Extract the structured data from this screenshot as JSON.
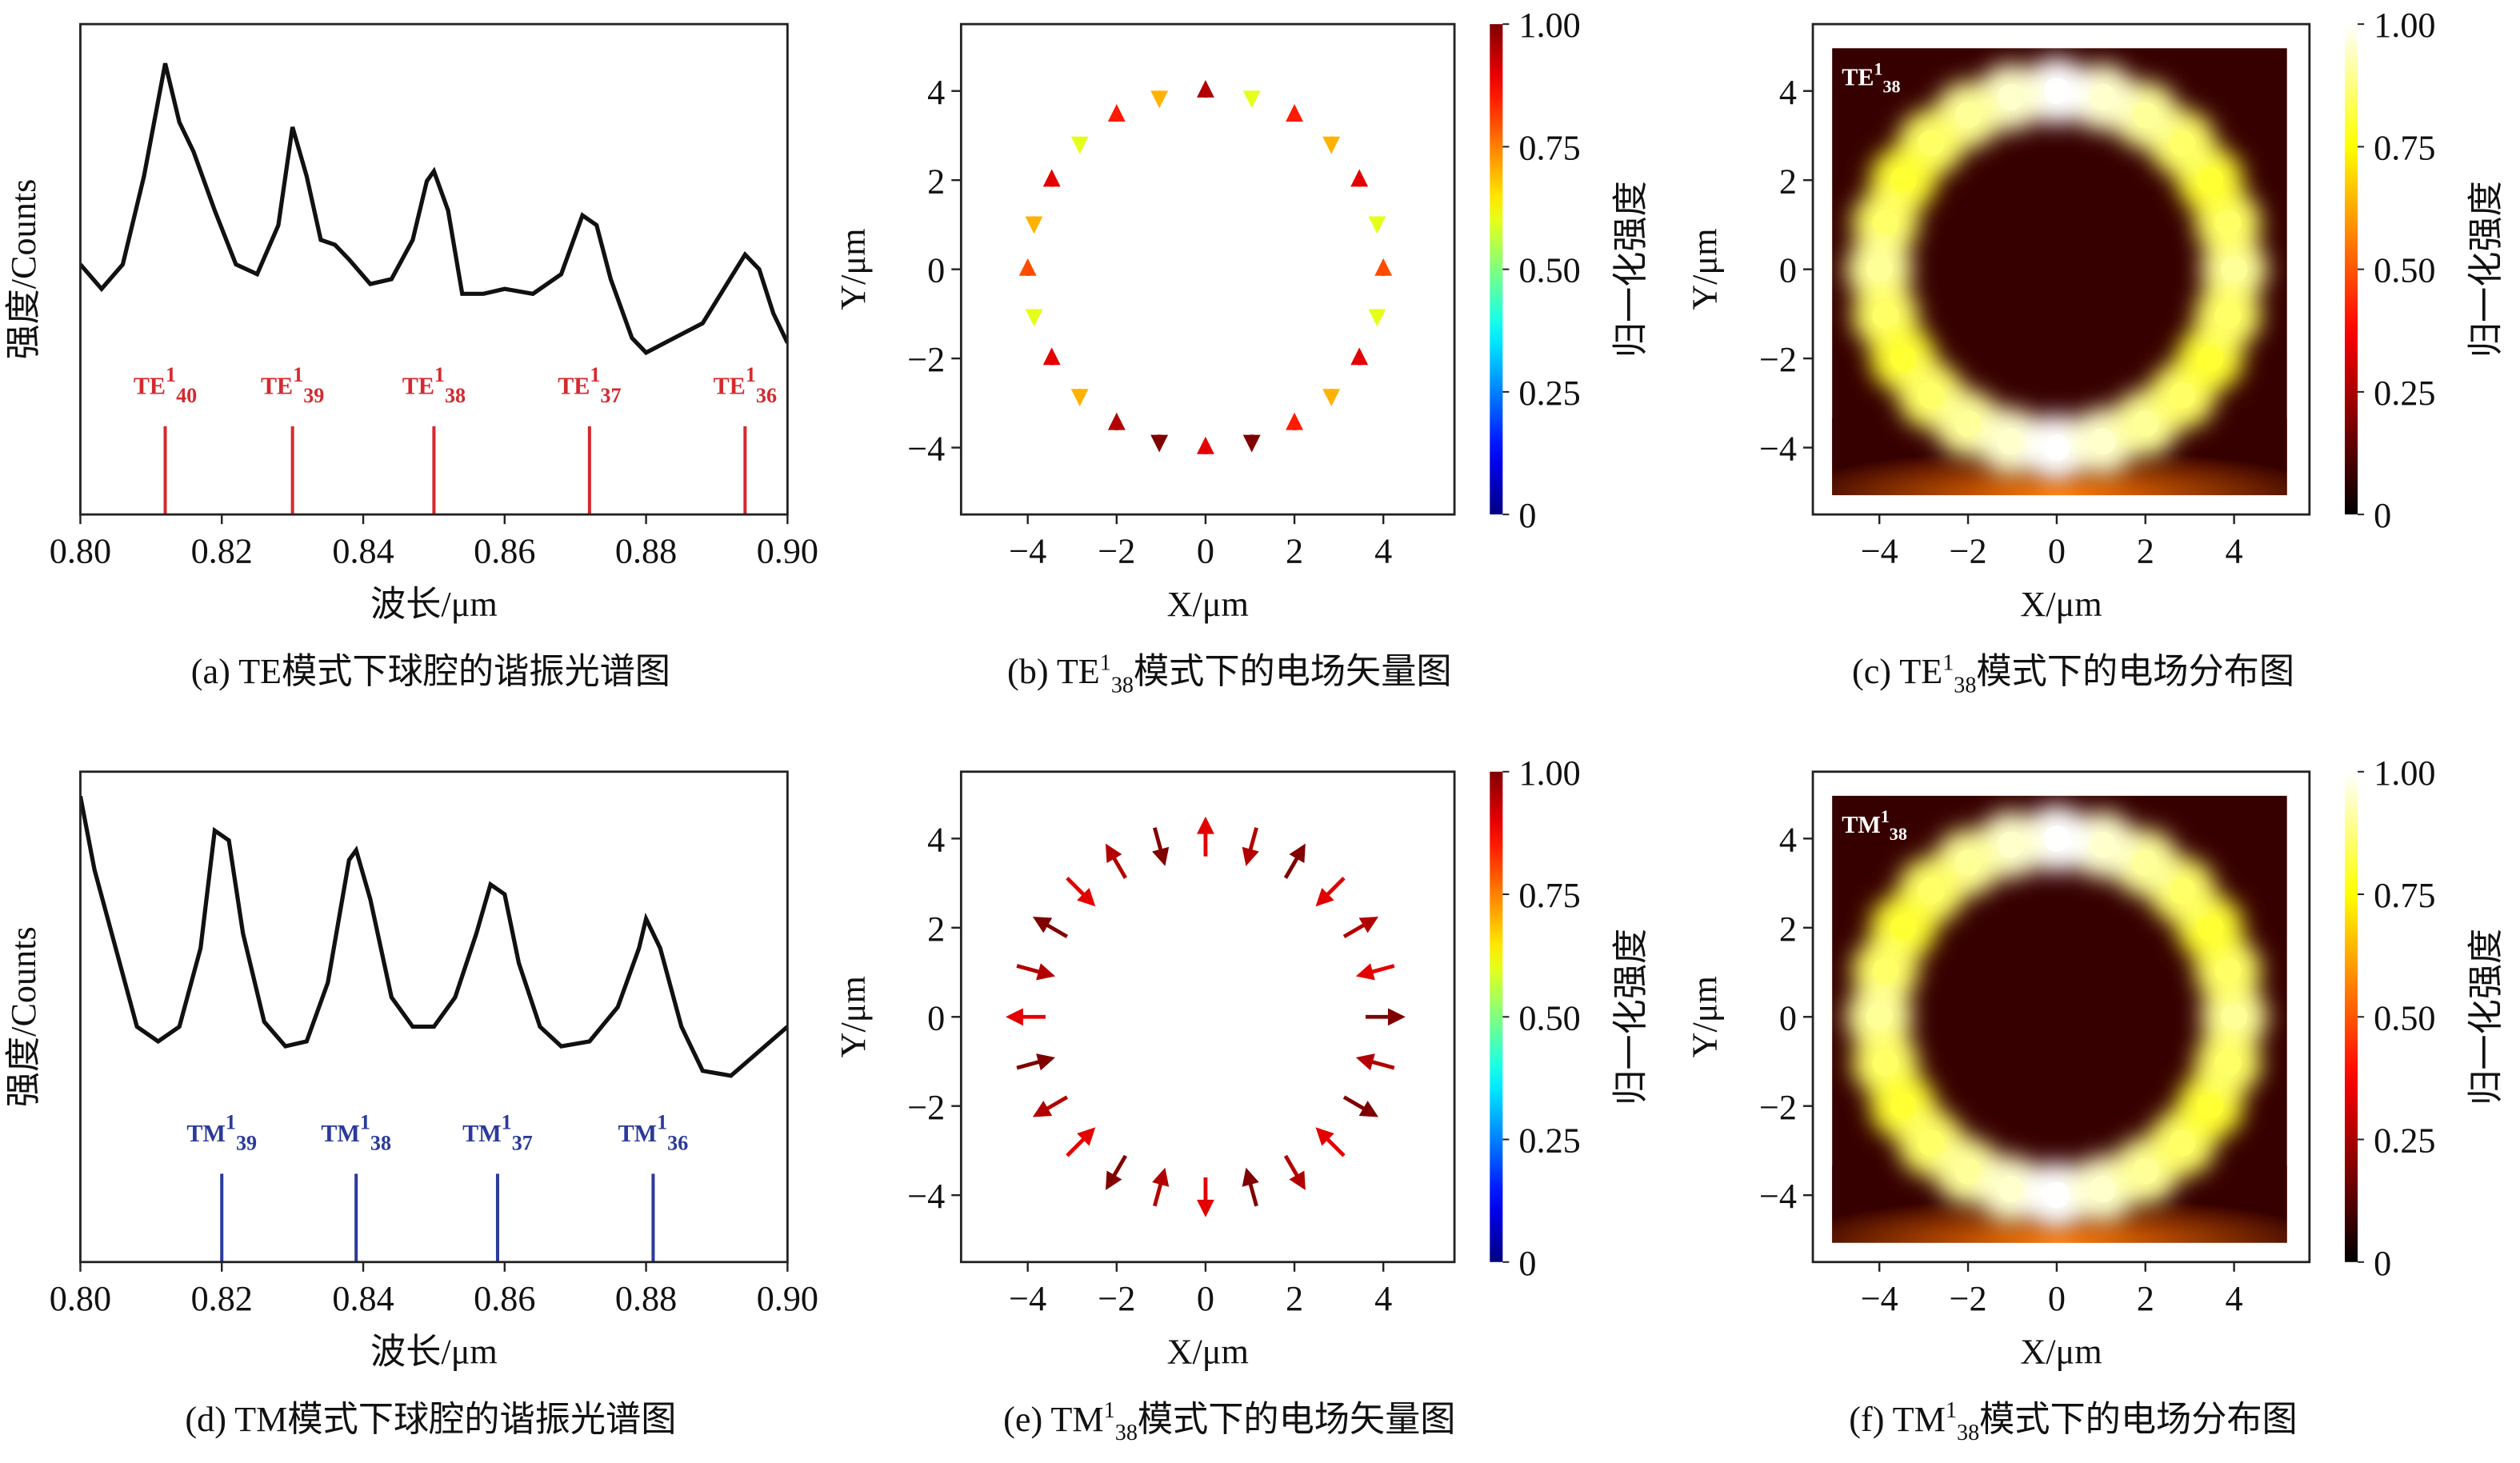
{
  "chart_data": [
    {
      "type": "line",
      "caption": "(a) TE模式下球腔的谐振光谱图",
      "xlabel": "波长/μm",
      "ylabel": "强度/Counts",
      "x": [
        0.8,
        0.803,
        0.806,
        0.809,
        0.812,
        0.814,
        0.816,
        0.819,
        0.822,
        0.825,
        0.828,
        0.83,
        0.832,
        0.834,
        0.836,
        0.838,
        0.841,
        0.844,
        0.847,
        0.849,
        0.85,
        0.852,
        0.854,
        0.857,
        0.86,
        0.864,
        0.868,
        0.871,
        0.873,
        0.875,
        0.878,
        0.88,
        0.884,
        0.888,
        0.891,
        0.894,
        0.896,
        0.898,
        0.9
      ],
      "series": [
        {
          "color": "#111111",
          "values": [
            0.51,
            0.46,
            0.51,
            0.69,
            0.92,
            0.8,
            0.74,
            0.62,
            0.51,
            0.49,
            0.59,
            0.79,
            0.69,
            0.56,
            0.55,
            0.52,
            0.47,
            0.48,
            0.56,
            0.68,
            0.7,
            0.62,
            0.45,
            0.45,
            0.46,
            0.45,
            0.49,
            0.61,
            0.59,
            0.48,
            0.36,
            0.33,
            0.36,
            0.39,
            0.46,
            0.53,
            0.5,
            0.41,
            0.35
          ]
        }
      ],
      "xlim": [
        0.8,
        0.9
      ],
      "ylim": [
        0,
        1
      ],
      "xticks": [
        {
          "value": 0.8,
          "label": "0.80"
        },
        0.82,
        0.84,
        0.86,
        0.88,
        {
          "value": 0.9,
          "label": "0.90"
        }
      ],
      "annotation_color": "#d42a2f",
      "annotations": [
        {
          "x": 0.812,
          "text": "TE",
          "sup": "1",
          "sub": "40"
        },
        {
          "x": 0.83,
          "text": "TE",
          "sup": "1",
          "sub": "39"
        },
        {
          "x": 0.85,
          "text": "TE",
          "sup": "1",
          "sub": "38"
        },
        {
          "x": 0.872,
          "text": "TE",
          "sup": "1",
          "sub": "37"
        },
        {
          "x": 0.894,
          "text": "TE",
          "sup": "1",
          "sub": "36"
        }
      ]
    },
    {
      "type": "quiver",
      "caption": {
        "prefix": "(b) TE",
        "sup": "1",
        "sub": "38",
        "suffix": "模式下的电场矢量图"
      },
      "xlabel": "X/μm",
      "ylabel": "Y/μm",
      "x": [
        4,
        3.86,
        3.46,
        2.83,
        2,
        1.04,
        0,
        -1.04,
        -2,
        -2.83,
        -3.46,
        -3.86,
        -4,
        -3.86,
        -3.46,
        -2.83,
        -2,
        -1.04,
        0,
        1.04,
        2,
        2.83,
        3.46,
        3.86
      ],
      "y": [
        0,
        1.04,
        2,
        2.83,
        3.46,
        3.86,
        4,
        3.86,
        3.46,
        2.83,
        2,
        1.04,
        0,
        -1.04,
        -2,
        -2.83,
        -3.46,
        -3.86,
        -4,
        -3.86,
        -3.46,
        -2.83,
        -2,
        -1.04
      ],
      "u": [
        0,
        0,
        0,
        0,
        0,
        0,
        0,
        0,
        0,
        0,
        0,
        0,
        0,
        0,
        0,
        0,
        0,
        0,
        0,
        0,
        0,
        0,
        0,
        0
      ],
      "v": [
        0.3,
        -0.3,
        0.3,
        -0.3,
        0.3,
        -0.3,
        0.3,
        -0.3,
        0.3,
        -0.3,
        0.3,
        -0.3,
        0.3,
        -0.3,
        0.3,
        -0.3,
        0.3,
        -0.3,
        0.3,
        -0.3,
        0.3,
        -0.3,
        0.3,
        -0.3
      ],
      "values": [
        0.8,
        0.6,
        0.9,
        0.7,
        0.85,
        0.6,
        0.95,
        0.7,
        0.85,
        0.6,
        0.9,
        0.7,
        0.8,
        0.6,
        0.9,
        0.7,
        0.95,
        1.0,
        0.9,
        1.0,
        0.85,
        0.7,
        0.9,
        0.6
      ],
      "xlim": [
        -5.5,
        5.6
      ],
      "ylim": [
        -5.5,
        5.5
      ],
      "xticks": [
        {
          "value": -4,
          "label": "−4"
        },
        {
          "value": -2,
          "label": "−2"
        },
        0,
        2,
        4
      ],
      "yticks": [
        {
          "value": -4,
          "label": "−4"
        },
        {
          "value": -2,
          "label": "−2"
        },
        0,
        2,
        4
      ],
      "colorbar": {
        "label": "归一化强度",
        "colormap": "jet",
        "lim": [
          0,
          1
        ],
        "ticks": [
          0,
          0.25,
          {
            "value": 0.5,
            "label": "0.50"
          },
          0.75,
          {
            "value": 1,
            "label": "1.00"
          }
        ]
      }
    },
    {
      "type": "heatmap",
      "caption": {
        "prefix": "(c) TE",
        "sup": "1",
        "sub": "38",
        "suffix": "模式下的电场分布图"
      },
      "title": {
        "text": "TE",
        "sup": "1",
        "sub": "38"
      },
      "xlabel": "X/μm",
      "ylabel": "Y/μm",
      "x": [
        4,
        3.86,
        3.46,
        2.83,
        2,
        1.04,
        0,
        -1.04,
        -2,
        -2.83,
        -3.46,
        -3.86,
        -4,
        -3.86,
        -3.46,
        -2.83,
        -2,
        -1.04,
        0,
        1.04,
        2,
        2.83,
        3.46,
        3.86
      ],
      "y": [
        0,
        1.04,
        2,
        2.83,
        3.46,
        3.86,
        4,
        3.86,
        3.46,
        2.83,
        2,
        1.04,
        0,
        -1.04,
        -2,
        -2.83,
        -3.46,
        -3.86,
        -4,
        -3.86,
        -3.46,
        -2.83,
        -2,
        -1.04
      ],
      "values": [
        0.9,
        0.85,
        0.8,
        0.85,
        0.9,
        0.95,
        1.0,
        0.95,
        0.9,
        0.85,
        0.8,
        0.85,
        0.9,
        0.85,
        0.8,
        0.85,
        0.9,
        0.95,
        1.0,
        0.95,
        0.9,
        0.85,
        0.8,
        0.85
      ],
      "xlim": [
        -5.5,
        5.7
      ],
      "ylim": [
        -5.5,
        5.5
      ],
      "xticks": [
        {
          "value": -4,
          "label": "−4"
        },
        {
          "value": -2,
          "label": "−2"
        },
        0,
        2,
        4
      ],
      "yticks": [
        {
          "value": -4,
          "label": "−4"
        },
        {
          "value": -2,
          "label": "−2"
        },
        0,
        2,
        4
      ],
      "colorbar": {
        "label": "归一化强度",
        "colormap": "hot",
        "lim": [
          0,
          1
        ],
        "ticks": [
          0,
          0.25,
          {
            "value": 0.5,
            "label": "0.50"
          },
          0.75,
          {
            "value": 1,
            "label": "1.00"
          }
        ]
      }
    },
    {
      "type": "line",
      "caption": "(d) TM模式下球腔的谐振光谱图",
      "xlabel": "波长/μm",
      "ylabel": "强度/Counts",
      "x": [
        0.8,
        0.802,
        0.805,
        0.808,
        0.811,
        0.814,
        0.817,
        0.819,
        0.821,
        0.823,
        0.826,
        0.829,
        0.832,
        0.835,
        0.838,
        0.839,
        0.841,
        0.844,
        0.847,
        0.85,
        0.853,
        0.856,
        0.858,
        0.86,
        0.862,
        0.865,
        0.868,
        0.872,
        0.876,
        0.879,
        0.88,
        0.882,
        0.885,
        0.888,
        0.892,
        0.896,
        0.9
      ],
      "series": [
        {
          "color": "#111111",
          "values": [
            0.95,
            0.8,
            0.64,
            0.48,
            0.45,
            0.48,
            0.64,
            0.88,
            0.86,
            0.67,
            0.49,
            0.44,
            0.45,
            0.57,
            0.82,
            0.84,
            0.74,
            0.54,
            0.48,
            0.48,
            0.54,
            0.67,
            0.77,
            0.75,
            0.61,
            0.48,
            0.44,
            0.45,
            0.52,
            0.64,
            0.7,
            0.64,
            0.48,
            0.39,
            0.38,
            0.43,
            0.48
          ]
        }
      ],
      "xlim": [
        0.8,
        0.9
      ],
      "ylim": [
        0,
        1
      ],
      "xticks": [
        {
          "value": 0.8,
          "label": "0.80"
        },
        0.82,
        0.84,
        0.86,
        0.88,
        {
          "value": 0.9,
          "label": "0.90"
        }
      ],
      "annotation_color": "#2b3a9a",
      "annotations": [
        {
          "x": 0.82,
          "text": "TM",
          "sup": "1",
          "sub": "39"
        },
        {
          "x": 0.839,
          "text": "TM",
          "sup": "1",
          "sub": "38"
        },
        {
          "x": 0.859,
          "text": "TM",
          "sup": "1",
          "sub": "37"
        },
        {
          "x": 0.881,
          "text": "TM",
          "sup": "1",
          "sub": "36"
        }
      ]
    },
    {
      "type": "quiver",
      "caption": {
        "prefix": "(e) TM",
        "sup": "1",
        "sub": "38",
        "suffix": "模式下的电场矢量图"
      },
      "xlabel": "X/μm",
      "ylabel": "Y/μm",
      "x": [
        4,
        3.86,
        3.46,
        2.83,
        2,
        1.04,
        0,
        -1.04,
        -2,
        -2.83,
        -3.46,
        -3.86,
        -4,
        -3.86,
        -3.46,
        -2.83,
        -2,
        -1.04,
        0,
        1.04,
        2,
        2.83,
        3.46,
        3.86
      ],
      "y": [
        0,
        1.04,
        2,
        2.83,
        3.46,
        3.86,
        4,
        3.86,
        3.46,
        2.83,
        2,
        1.04,
        0,
        -1.04,
        -2,
        -2.83,
        -3.46,
        -3.86,
        -4,
        -3.86,
        -3.46,
        -2.83,
        -2,
        -1.04
      ],
      "u": [
        0.8,
        -0.77,
        0.69,
        -0.57,
        0.4,
        -0.21,
        0,
        0.21,
        -0.4,
        0.57,
        -0.69,
        0.77,
        -0.8,
        0.77,
        -0.69,
        0.57,
        -0.4,
        0.21,
        0,
        -0.21,
        0.4,
        -0.57,
        0.69,
        -0.77
      ],
      "v": [
        0,
        -0.21,
        0.4,
        -0.57,
        0.69,
        -0.77,
        0.8,
        -0.77,
        0.69,
        -0.57,
        0.4,
        -0.21,
        0,
        0.21,
        -0.4,
        0.57,
        -0.69,
        0.77,
        -0.8,
        0.77,
        -0.69,
        0.57,
        -0.4,
        0.21
      ],
      "values": [
        1.0,
        0.9,
        0.95,
        0.9,
        1.0,
        0.95,
        0.9,
        1.0,
        0.95,
        0.9,
        1.0,
        0.95,
        0.9,
        1.0,
        0.95,
        0.9,
        1.0,
        0.95,
        0.9,
        1.0,
        0.95,
        0.9,
        1.0,
        0.95
      ],
      "xlim": [
        -5.5,
        5.6
      ],
      "ylim": [
        -5.5,
        5.5
      ],
      "xticks": [
        {
          "value": -4,
          "label": "−4"
        },
        {
          "value": -2,
          "label": "−2"
        },
        0,
        2,
        4
      ],
      "yticks": [
        {
          "value": -4,
          "label": "−4"
        },
        {
          "value": -2,
          "label": "−2"
        },
        0,
        2,
        4
      ],
      "colorbar": {
        "label": "归一化强度",
        "colormap": "jet",
        "lim": [
          0,
          1
        ],
        "ticks": [
          0,
          0.25,
          {
            "value": 0.5,
            "label": "0.50"
          },
          0.75,
          {
            "value": 1,
            "label": "1.00"
          }
        ]
      }
    },
    {
      "type": "heatmap",
      "caption": {
        "prefix": "(f) TM",
        "sup": "1",
        "sub": "38",
        "suffix": "模式下的电场分布图"
      },
      "title": {
        "text": "TM",
        "sup": "1",
        "sub": "38"
      },
      "xlabel": "X/μm",
      "ylabel": "Y/μm",
      "x": [
        4,
        3.86,
        3.46,
        2.83,
        2,
        1.04,
        0,
        -1.04,
        -2,
        -2.83,
        -3.46,
        -3.86,
        -4,
        -3.86,
        -3.46,
        -2.83,
        -2,
        -1.04,
        0,
        1.04,
        2,
        2.83,
        3.46,
        3.86
      ],
      "y": [
        0,
        1.04,
        2,
        2.83,
        3.46,
        3.86,
        4,
        3.86,
        3.46,
        2.83,
        2,
        1.04,
        0,
        -1.04,
        -2,
        -2.83,
        -3.46,
        -3.86,
        -4,
        -3.86,
        -3.46,
        -2.83,
        -2,
        -1.04
      ],
      "values": [
        0.9,
        0.85,
        0.8,
        0.85,
        0.9,
        0.95,
        1.0,
        0.95,
        0.9,
        0.85,
        0.8,
        0.85,
        0.9,
        0.85,
        0.8,
        0.85,
        0.9,
        0.95,
        1.0,
        0.95,
        0.9,
        0.85,
        0.8,
        0.85
      ],
      "xlim": [
        -5.5,
        5.7
      ],
      "ylim": [
        -5.5,
        5.5
      ],
      "xticks": [
        {
          "value": -4,
          "label": "−4"
        },
        {
          "value": -2,
          "label": "−2"
        },
        0,
        2,
        4
      ],
      "yticks": [
        {
          "value": -4,
          "label": "−4"
        },
        {
          "value": -2,
          "label": "−2"
        },
        0,
        2,
        4
      ],
      "colorbar": {
        "label": "归一化强度",
        "colormap": "hot",
        "lim": [
          0,
          1
        ],
        "ticks": [
          0,
          0.25,
          {
            "value": 0.5,
            "label": "0.50"
          },
          0.75,
          {
            "value": 1,
            "label": "1.00"
          }
        ]
      }
    }
  ]
}
